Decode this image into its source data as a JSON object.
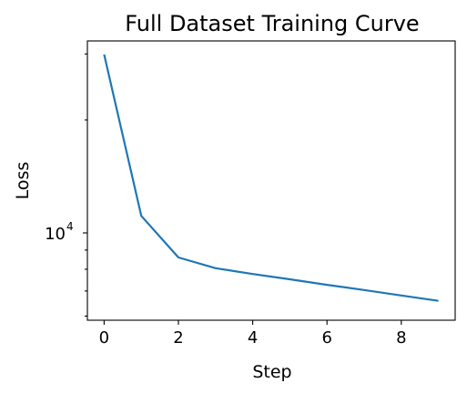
{
  "chart_data": {
    "type": "line",
    "title": "Full Dataset Training Curve",
    "xlabel": "Step",
    "ylabel": "Loss",
    "y_scale": "log",
    "xlim": [
      -0.45,
      9.45
    ],
    "ylim": [
      5850,
      32500
    ],
    "x_ticks": [
      {
        "value": 0,
        "label": "0"
      },
      {
        "value": 2,
        "label": "2"
      },
      {
        "value": 4,
        "label": "4"
      },
      {
        "value": 6,
        "label": "6"
      },
      {
        "value": 8,
        "label": "8"
      }
    ],
    "y_major_ticks": [
      {
        "value": 10000,
        "base": "10",
        "exponent": "4"
      }
    ],
    "y_minor_ticks": [
      6000,
      7000,
      8000,
      9000,
      20000,
      30000
    ],
    "grid": false,
    "legend": "none",
    "series": [
      {
        "color": "#1f77b4",
        "x": [
          0,
          1,
          2,
          3,
          4,
          5,
          6,
          7,
          8,
          9
        ],
        "y": [
          29900,
          11100,
          8600,
          8050,
          7770,
          7520,
          7270,
          7040,
          6810,
          6590
        ]
      }
    ]
  }
}
